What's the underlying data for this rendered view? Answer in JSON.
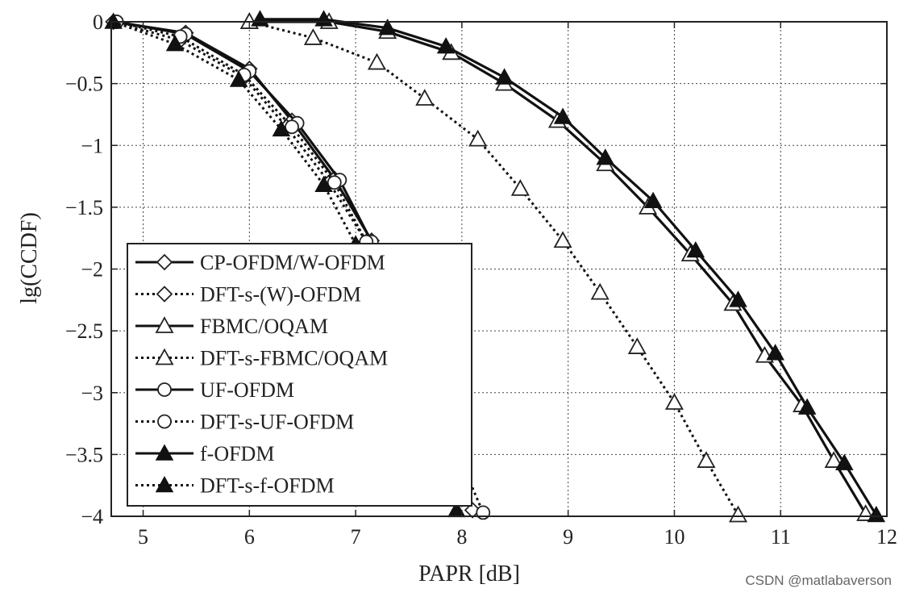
{
  "chart_data": {
    "type": "line",
    "title": "",
    "xlabel": "PAPR [dB]",
    "ylabel": "lg(CCDF)",
    "xlim": [
      4.7,
      12
    ],
    "ylim": [
      -4,
      0
    ],
    "xticks": [
      5,
      6,
      7,
      8,
      9,
      10,
      11,
      12
    ],
    "yticks": [
      0,
      -0.5,
      -1,
      -1.5,
      -2,
      -2.5,
      -3,
      -3.5,
      -4
    ],
    "xtick_labels": [
      "5",
      "6",
      "7",
      "8",
      "9",
      "10",
      "11",
      "12"
    ],
    "ytick_labels": [
      "0",
      "−0.5",
      "−1",
      "−1.5",
      "−2",
      "−2.5",
      "−3",
      "−3.5",
      "−4"
    ],
    "grid": true,
    "legend_position": "lower-left",
    "series": [
      {
        "name": "CP-OFDM/W-OFDM",
        "line": "solid",
        "marker": "diamond-open",
        "x": [
          4.72,
          5.4,
          6.0,
          6.4,
          6.8,
          7.15,
          7.6,
          8.1
        ],
        "y": [
          0,
          -0.09,
          -0.38,
          -0.8,
          -1.27,
          -1.77,
          -2.9,
          -3.95
        ]
      },
      {
        "name": "DFT-s-(W)-OFDM",
        "line": "dotted",
        "marker": "diamond-open",
        "x": [
          4.72,
          5.35,
          5.95,
          6.35,
          6.75,
          7.1
        ],
        "y": [
          0,
          -0.15,
          -0.45,
          -0.85,
          -1.3,
          -1.78
        ]
      },
      {
        "name": "FBMC/OQAM",
        "line": "solid",
        "marker": "triangle-open",
        "x": [
          6.0,
          6.75,
          7.3,
          7.9,
          8.4,
          8.9,
          9.35,
          9.75,
          10.15,
          10.55,
          10.85,
          11.2,
          11.5,
          11.8
        ],
        "y": [
          0,
          0,
          -0.08,
          -0.25,
          -0.5,
          -0.8,
          -1.15,
          -1.5,
          -1.88,
          -2.28,
          -2.7,
          -3.1,
          -3.55,
          -3.98
        ]
      },
      {
        "name": "DFT-s-FBMC/OQAM",
        "line": "dotted",
        "marker": "triangle-open",
        "x": [
          6.0,
          6.6,
          7.2,
          7.65,
          8.15,
          8.55,
          8.95,
          9.3,
          9.65,
          10.0,
          10.3,
          10.6
        ],
        "y": [
          0,
          -0.13,
          -0.33,
          -0.62,
          -0.95,
          -1.35,
          -1.77,
          -2.19,
          -2.63,
          -3.08,
          -3.55,
          -3.99
        ]
      },
      {
        "name": "UF-OFDM",
        "line": "solid",
        "marker": "circle-open",
        "x": [
          4.75,
          5.4,
          6.0,
          6.45,
          6.85,
          7.15
        ],
        "y": [
          0,
          -0.1,
          -0.4,
          -0.82,
          -1.28,
          -1.78
        ]
      },
      {
        "name": "DFT-s-UF-OFDM",
        "line": "dotted",
        "marker": "circle-open",
        "x": [
          4.75,
          5.35,
          5.95,
          6.4,
          6.8,
          7.1,
          8.2
        ],
        "y": [
          0,
          -0.12,
          -0.43,
          -0.85,
          -1.3,
          -1.78,
          -3.97
        ]
      },
      {
        "name": "f-OFDM",
        "line": "solid",
        "marker": "triangle-filled",
        "x": [
          6.1,
          6.7,
          7.3,
          7.85,
          8.4,
          8.95,
          9.35,
          9.8,
          10.2,
          10.6,
          10.95,
          11.25,
          11.6,
          11.9
        ],
        "y": [
          0.02,
          0.02,
          -0.05,
          -0.2,
          -0.45,
          -0.77,
          -1.1,
          -1.45,
          -1.85,
          -2.25,
          -2.68,
          -3.12,
          -3.57,
          -3.99
        ]
      },
      {
        "name": "DFT-s-f-OFDM",
        "line": "dotted",
        "marker": "triangle-filled",
        "x": [
          4.72,
          5.3,
          5.9,
          6.3,
          6.7,
          7.0,
          7.95
        ],
        "y": [
          0,
          -0.18,
          -0.47,
          -0.87,
          -1.32,
          -1.8,
          -3.95
        ]
      }
    ]
  },
  "watermark": "CSDN @matlabaverson"
}
